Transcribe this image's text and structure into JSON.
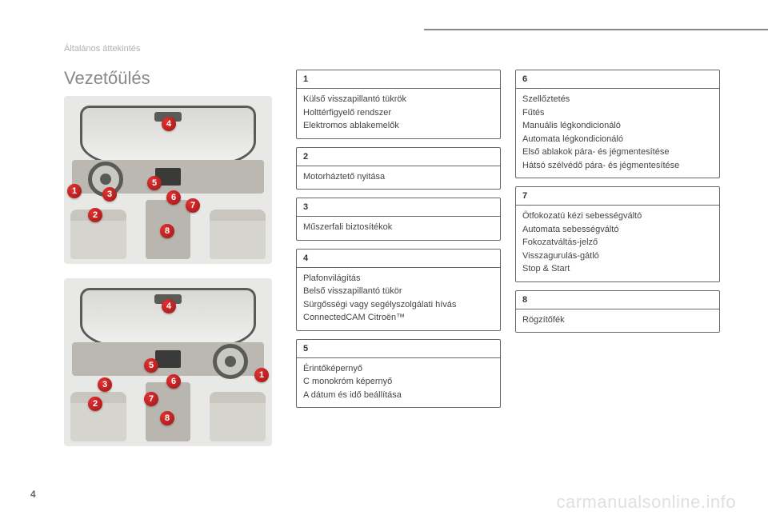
{
  "category": "Általános áttekintés",
  "title": "Vezetőülés",
  "page_number": "4",
  "watermark": "carmanualsonline.info",
  "badges": [
    "1",
    "2",
    "3",
    "4",
    "5",
    "6",
    "7",
    "8"
  ],
  "blocks": [
    {
      "num": "1",
      "lines": [
        "Külső visszapillantó tükrök",
        "Holttérfigyelő rendszer",
        "Elektromos ablakemelők"
      ]
    },
    {
      "num": "2",
      "lines": [
        "Motorháztető nyitása"
      ]
    },
    {
      "num": "3",
      "lines": [
        "Műszerfali biztosítékok"
      ]
    },
    {
      "num": "4",
      "lines": [
        "Plafonvilágítás",
        "Belső visszapillantó tükör",
        "Sürgősségi vagy segélyszolgálati hívás",
        "ConnectedCAM Citroën™"
      ]
    },
    {
      "num": "5",
      "lines": [
        "Érintőképernyő",
        "C monokróm képernyő",
        "A dátum és idő beállítása"
      ]
    },
    {
      "num": "6",
      "lines": [
        "Szellőztetés",
        "Fűtés",
        "Manuális légkondicionáló",
        "Automata légkondicionáló",
        "Első ablakok pára- és jégmentesítése",
        "Hátsó szélvédő pára- és jégmentesítése"
      ]
    },
    {
      "num": "7",
      "lines": [
        "Ötfokozatú kézi sebességváltó",
        "Automata sebességváltó",
        "Fokozatváltás-jelző",
        "Visszagurulás-gátló",
        "Stop & Start"
      ]
    },
    {
      "num": "8",
      "lines": [
        "Rögzítőfék"
      ]
    }
  ],
  "style": {
    "border_color": "#666666",
    "text_color": "#444444",
    "title_color": "#888888",
    "badge_bg": "#c02020"
  }
}
